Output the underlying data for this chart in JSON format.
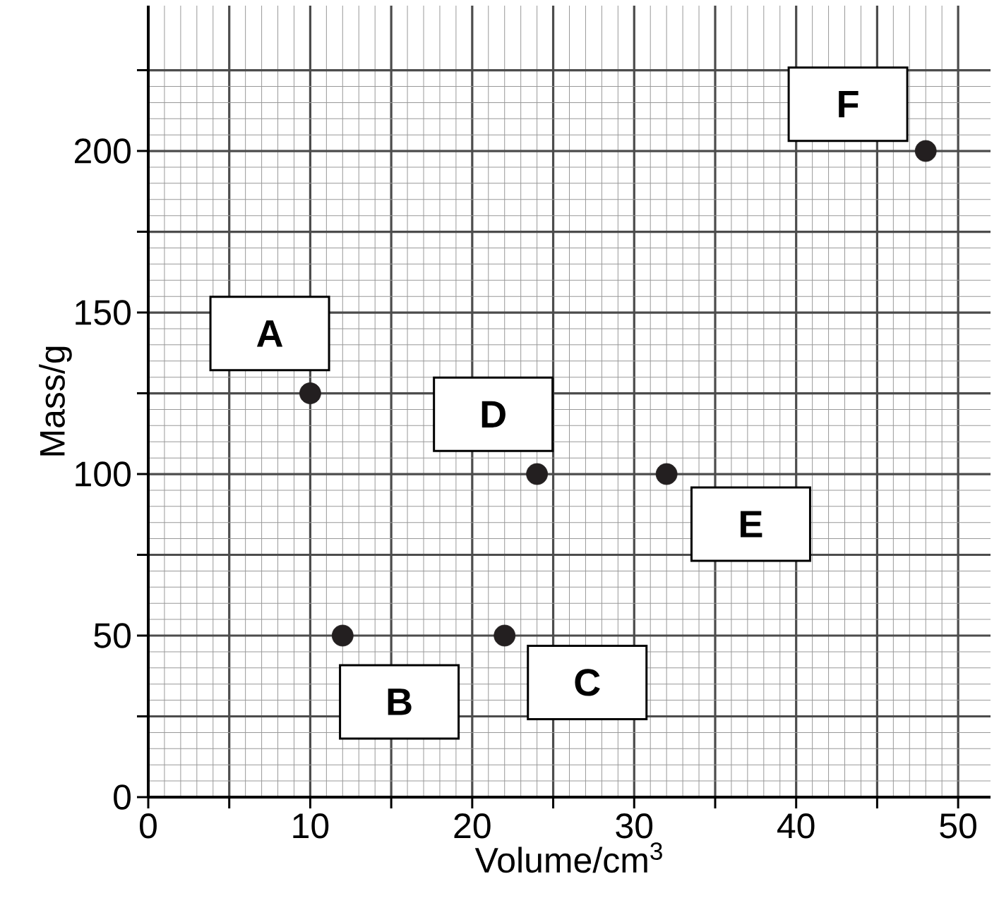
{
  "chart_data": {
    "type": "scatter",
    "xlabel": "Volume/cm$^{3}$",
    "ylabel": "Mass/g",
    "x": [
      10,
      12,
      22,
      24,
      32,
      48
    ],
    "values": [
      125,
      50,
      50,
      100,
      100,
      200
    ],
    "color": "#231f20",
    "marker": "circle",
    "grid": true,
    "xlim": [
      0,
      52
    ],
    "ylim": [
      0,
      245
    ],
    "xticks": [
      0,
      {
        "value": 5,
        "label": null
      },
      10,
      {
        "value": 15,
        "label": null
      },
      20,
      {
        "value": 25,
        "label": null
      },
      30,
      {
        "value": 35,
        "label": null
      },
      40,
      {
        "value": 45,
        "label": null
      },
      50
    ],
    "yticks": [
      0,
      {
        "value": 25,
        "label": null
      },
      50,
      {
        "value": 75,
        "label": null
      },
      100,
      {
        "value": 125,
        "label": null
      },
      150,
      {
        "value": 175,
        "label": null
      },
      200,
      {
        "value": 225,
        "label": null
      }
    ],
    "annotations": [
      {
        "text": "A",
        "x": 10,
        "y": 125
      },
      {
        "text": "B",
        "x": 12,
        "y": 50
      },
      {
        "text": "C",
        "x": 22,
        "y": 50
      },
      {
        "text": "D",
        "x": 24,
        "y": 100
      },
      {
        "text": "E",
        "x": 32,
        "y": 100
      },
      {
        "text": "F",
        "x": 48,
        "y": 200
      }
    ]
  }
}
